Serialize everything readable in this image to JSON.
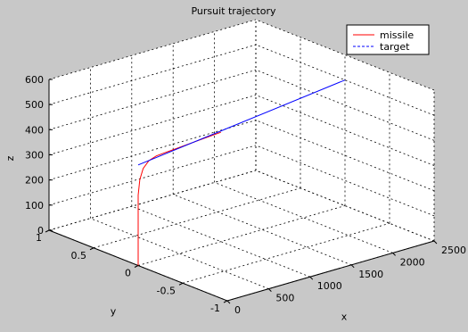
{
  "chart_data": {
    "type": "line",
    "title": "Pursuit trajectory",
    "xlabel": "x",
    "ylabel": "y",
    "zlabel": "z",
    "xlim": [
      0,
      2500
    ],
    "ylim": [
      -1,
      1
    ],
    "zlim": [
      0,
      600
    ],
    "x_ticks": [
      0,
      500,
      1000,
      1500,
      2000,
      2500
    ],
    "y_ticks": [
      -1,
      -0.5,
      0,
      0.5,
      1
    ],
    "z_ticks": [
      0,
      100,
      200,
      300,
      400,
      500,
      600
    ],
    "grid": true,
    "legend_position": "top-right",
    "colors": {
      "missile": "#ff0000",
      "target": "#0000ff",
      "plot_bg": "#ffffff",
      "figure_bg": "#c8c8c8"
    },
    "series": [
      {
        "name": "missile",
        "style": "solid",
        "color": "#ff0000",
        "points": [
          [
            0,
            0,
            0
          ],
          [
            0,
            0,
            100
          ],
          [
            0,
            0,
            200
          ],
          [
            0,
            0,
            280
          ],
          [
            20,
            0,
            340
          ],
          [
            60,
            0,
            380
          ],
          [
            130,
            0,
            405
          ],
          [
            220,
            0,
            415
          ],
          [
            320,
            0,
            418
          ],
          [
            450,
            0,
            421
          ],
          [
            600,
            0,
            425
          ],
          [
            800,
            0,
            430
          ],
          [
            1000,
            0,
            435
          ]
        ]
      },
      {
        "name": "target",
        "style": "dashed",
        "color": "#0000ff",
        "points": [
          [
            0,
            0,
            400
          ],
          [
            2500,
            0,
            500
          ]
        ]
      }
    ]
  }
}
